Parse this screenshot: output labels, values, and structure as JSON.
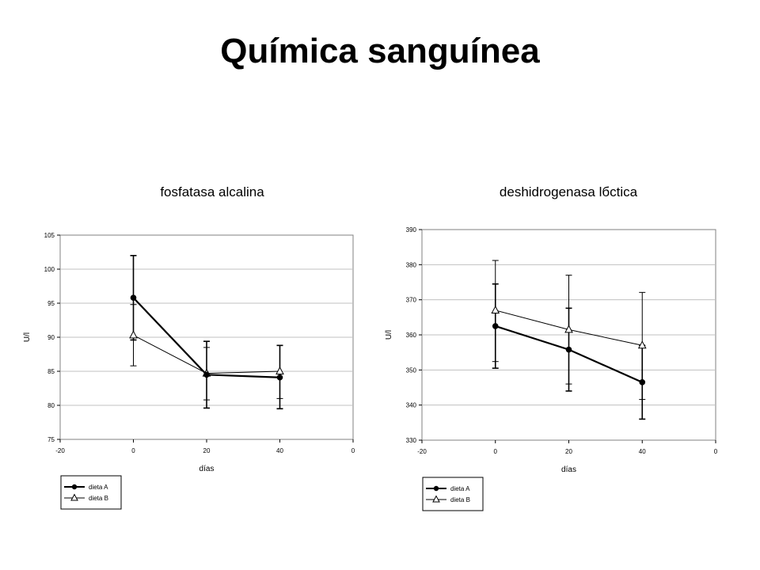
{
  "slide": {
    "title": "Química sanguínea"
  },
  "chart_data": [
    {
      "type": "line",
      "title": "fosfatasa alcalina",
      "xlabel": "días",
      "ylabel": "U/l",
      "xlim": [
        -20,
        60
      ],
      "ylim": [
        75,
        105
      ],
      "x_ticks": [
        "-20",
        "0",
        "20",
        "40",
        "0"
      ],
      "y_ticks": [
        "75",
        "80",
        "85",
        "90",
        "95",
        "100",
        "105"
      ],
      "grid": true,
      "legend": "bottom-left",
      "x": [
        0,
        20,
        40
      ],
      "series": [
        {
          "name": "dieta A",
          "values": [
            95.8,
            84.5,
            84.1
          ],
          "error_low": [
            89.6,
            79.6,
            79.5
          ],
          "error_high": [
            102.0,
            89.4,
            88.8
          ],
          "marker": "circle"
        },
        {
          "name": "dieta B",
          "values": [
            90.3,
            84.7,
            85.0
          ],
          "error_low": [
            85.8,
            80.8,
            81.0
          ],
          "error_high": [
            94.8,
            88.5,
            88.8
          ],
          "marker": "triangle"
        }
      ]
    },
    {
      "type": "line",
      "title": "deshidrogenasa lбctica",
      "xlabel": "días",
      "ylabel": "U/l",
      "xlim": [
        -20,
        60
      ],
      "ylim": [
        330,
        390
      ],
      "x_ticks": [
        "-20",
        "0",
        "20",
        "40",
        "0"
      ],
      "y_ticks": [
        "330",
        "340",
        "350",
        "360",
        "370",
        "380",
        "390"
      ],
      "grid": true,
      "legend": "bottom-left",
      "x": [
        0,
        20,
        40
      ],
      "series": [
        {
          "name": "dieta A",
          "values": [
            362.5,
            355.8,
            346.5
          ],
          "error_low": [
            350.5,
            344.0,
            336.0
          ],
          "error_high": [
            374.5,
            367.6,
            357.0
          ],
          "marker": "circle"
        },
        {
          "name": "dieta B",
          "values": [
            367.0,
            361.5,
            357.0
          ],
          "error_low": [
            352.4,
            346.0,
            341.6
          ],
          "error_high": [
            381.2,
            377.0,
            372.1
          ],
          "marker": "triangle"
        }
      ]
    }
  ]
}
